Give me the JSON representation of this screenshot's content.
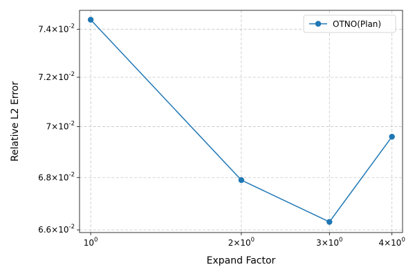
{
  "chart_data": {
    "type": "line",
    "xlabel": "Expand Factor",
    "ylabel": "Relative L2 Error",
    "xscale": "log",
    "yscale": "log",
    "xlim": [
      0.95,
      4.2
    ],
    "ylim": [
      0.0659,
      0.0748
    ],
    "xticks": [
      {
        "value": 1,
        "label": "10^0"
      },
      {
        "value": 2,
        "label": "2×10^0"
      },
      {
        "value": 3,
        "label": "3×10^0"
      },
      {
        "value": 4,
        "label": "4×10^0"
      }
    ],
    "yticks": [
      {
        "value": 0.066,
        "label": "6.6×10^-2"
      },
      {
        "value": 0.068,
        "label": "6.8×10^-2"
      },
      {
        "value": 0.07,
        "label": "7×10^-2"
      },
      {
        "value": 0.072,
        "label": "7.2×10^-2"
      },
      {
        "value": 0.074,
        "label": "7.4×10^-2"
      }
    ],
    "grid": true,
    "legend_position": "top-right",
    "series": [
      {
        "name": "OTNO(Plan)",
        "color": "#1f77b4",
        "marker": "circle",
        "x": [
          1,
          2,
          3,
          4
        ],
        "y": [
          0.0744,
          0.0679,
          0.0663,
          0.0696
        ]
      }
    ]
  }
}
